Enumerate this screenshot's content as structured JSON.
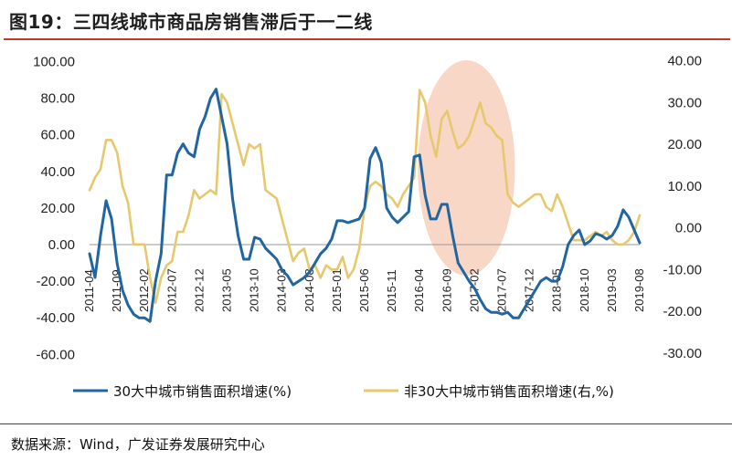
{
  "title": "图19：三四线城市商品房销售滞后于一二线",
  "source": "数据来源：Wind，广发证券发展研究中心",
  "colors": {
    "series_tier12": "#2166a0",
    "series_tier34": "#e6c86e",
    "highlight": "#f7c9b3",
    "title_rule": "#c0392b"
  },
  "chart_data": {
    "type": "line",
    "x_tick_labels": [
      "2011-04",
      "2011-09",
      "2012-02",
      "2012-07",
      "2012-12",
      "2013-05",
      "2013-10",
      "2014-03",
      "2014-08",
      "2015-01",
      "2015-06",
      "2015-11",
      "2016-04",
      "2016-09",
      "2017-02",
      "2017-07",
      "2017-12",
      "2018-05",
      "2018-10",
      "2019-03",
      "2019-08"
    ],
    "y_left": {
      "ticks": [
        "100.00",
        "80.00",
        "60.00",
        "40.00",
        "20.00",
        "0.00",
        "-20.00",
        "-40.00",
        "-60.00"
      ],
      "range": [
        -60,
        100
      ]
    },
    "y_right": {
      "ticks": [
        "40.00",
        "30.00",
        "20.00",
        "10.00",
        "0.00",
        "-10.00",
        "-20.00",
        "-30.00"
      ],
      "range": [
        -30,
        40
      ]
    },
    "highlight_region": {
      "x_from": "2016-04",
      "x_to": "2017-09"
    },
    "legend_position": "bottom",
    "series": [
      {
        "name": "30大中城市销售面积增速(%)",
        "axis": "left",
        "x": [
          "2011-04",
          "2011-05",
          "2011-06",
          "2011-07",
          "2011-08",
          "2011-09",
          "2011-10",
          "2011-11",
          "2011-12",
          "2012-01",
          "2012-02",
          "2012-03",
          "2012-04",
          "2012-05",
          "2012-06",
          "2012-07",
          "2012-08",
          "2012-09",
          "2012-10",
          "2012-11",
          "2012-12",
          "2013-01",
          "2013-02",
          "2013-03",
          "2013-04",
          "2013-05",
          "2013-06",
          "2013-07",
          "2013-08",
          "2013-09",
          "2013-10",
          "2013-11",
          "2013-12",
          "2014-01",
          "2014-02",
          "2014-03",
          "2014-04",
          "2014-05",
          "2014-06",
          "2014-07",
          "2014-08",
          "2014-09",
          "2014-10",
          "2014-11",
          "2014-12",
          "2015-01",
          "2015-02",
          "2015-03",
          "2015-04",
          "2015-05",
          "2015-06",
          "2015-07",
          "2015-08",
          "2015-09",
          "2015-10",
          "2015-11",
          "2015-12",
          "2016-01",
          "2016-02",
          "2016-03",
          "2016-04",
          "2016-05",
          "2016-06",
          "2016-07",
          "2016-08",
          "2016-09",
          "2016-10",
          "2016-11",
          "2016-12",
          "2017-01",
          "2017-02",
          "2017-03",
          "2017-04",
          "2017-05",
          "2017-06",
          "2017-07",
          "2017-08",
          "2017-09",
          "2017-10",
          "2017-11",
          "2017-12",
          "2018-01",
          "2018-02",
          "2018-03",
          "2018-04",
          "2018-05",
          "2018-06",
          "2018-07",
          "2018-08",
          "2018-09",
          "2018-10",
          "2018-11",
          "2018-12",
          "2019-01",
          "2019-02",
          "2019-03",
          "2019-04",
          "2019-05",
          "2019-06",
          "2019-07",
          "2019-08"
        ],
        "values": [
          -5,
          -18,
          5,
          24,
          14,
          -10,
          -25,
          -33,
          -38,
          -40,
          -40,
          -42,
          -20,
          -5,
          38,
          38,
          50,
          55,
          50,
          48,
          63,
          70,
          80,
          85,
          70,
          55,
          25,
          5,
          -8,
          -8,
          4,
          3,
          -2,
          -5,
          -8,
          -14,
          -17,
          -22,
          -20,
          -18,
          -15,
          -10,
          -5,
          -2,
          3,
          13,
          13,
          12,
          13,
          14,
          20,
          47,
          53,
          45,
          20,
          15,
          12,
          15,
          18,
          48,
          49,
          27,
          14,
          14,
          22,
          22,
          5,
          -10,
          -15,
          -20,
          -24,
          -30,
          -35,
          -37,
          -37,
          -38,
          -37,
          -40,
          -40,
          -35,
          -30,
          -25,
          -20,
          -18,
          -20,
          -20,
          -12,
          0,
          5,
          8,
          0,
          2,
          6,
          5,
          3,
          5,
          10,
          19,
          15,
          8,
          1
        ]
      },
      {
        "name": "非30大中城市销售面积增速(右,%)",
        "axis": "right",
        "x": [
          "2011-04",
          "2011-05",
          "2011-06",
          "2011-07",
          "2011-08",
          "2011-09",
          "2011-10",
          "2011-11",
          "2011-12",
          "2012-01",
          "2012-02",
          "2012-03",
          "2012-04",
          "2012-05",
          "2012-06",
          "2012-07",
          "2012-08",
          "2012-09",
          "2012-10",
          "2012-11",
          "2012-12",
          "2013-01",
          "2013-02",
          "2013-03",
          "2013-04",
          "2013-05",
          "2013-06",
          "2013-07",
          "2013-08",
          "2013-09",
          "2013-10",
          "2013-11",
          "2013-12",
          "2014-01",
          "2014-02",
          "2014-03",
          "2014-04",
          "2014-05",
          "2014-06",
          "2014-07",
          "2014-08",
          "2014-09",
          "2014-10",
          "2014-11",
          "2014-12",
          "2015-01",
          "2015-02",
          "2015-03",
          "2015-04",
          "2015-05",
          "2015-06",
          "2015-07",
          "2015-08",
          "2015-09",
          "2015-10",
          "2015-11",
          "2015-12",
          "2016-01",
          "2016-02",
          "2016-03",
          "2016-04",
          "2016-05",
          "2016-06",
          "2016-07",
          "2016-08",
          "2016-09",
          "2016-10",
          "2016-11",
          "2016-12",
          "2017-01",
          "2017-02",
          "2017-03",
          "2017-04",
          "2017-05",
          "2017-06",
          "2017-07",
          "2017-08",
          "2017-09",
          "2017-10",
          "2017-11",
          "2017-12",
          "2018-01",
          "2018-02",
          "2018-03",
          "2018-04",
          "2018-05",
          "2018-06",
          "2018-07",
          "2018-08",
          "2018-09",
          "2018-10",
          "2018-11",
          "2018-12",
          "2019-01",
          "2019-02",
          "2019-03",
          "2019-04",
          "2019-05",
          "2019-06",
          "2019-07",
          "2019-08"
        ],
        "values": [
          9,
          12,
          14,
          21,
          21,
          18,
          10,
          6,
          -4,
          -4,
          -4,
          -12,
          -18,
          -12,
          -9,
          -8,
          -1,
          -1,
          3,
          9,
          7,
          8,
          9,
          8,
          32,
          30,
          25,
          20,
          15,
          20,
          19,
          20,
          9,
          8,
          7,
          2,
          -3,
          -8,
          -6,
          -5,
          -10,
          -9,
          -12,
          -9,
          -10,
          -10,
          -7,
          -12,
          -10,
          -5,
          5,
          10,
          11,
          10,
          8,
          7,
          5,
          8,
          10,
          12,
          33,
          30,
          22,
          17,
          26,
          28,
          23,
          19,
          20,
          22,
          26,
          30,
          25,
          24,
          22,
          21,
          8,
          6,
          5,
          6,
          7,
          8,
          8,
          5,
          4,
          8,
          5,
          1,
          -3,
          -3,
          -3,
          -2,
          -1,
          -2,
          -1,
          -3,
          -4,
          -4,
          -3,
          -1,
          3
        ]
      }
    ]
  }
}
